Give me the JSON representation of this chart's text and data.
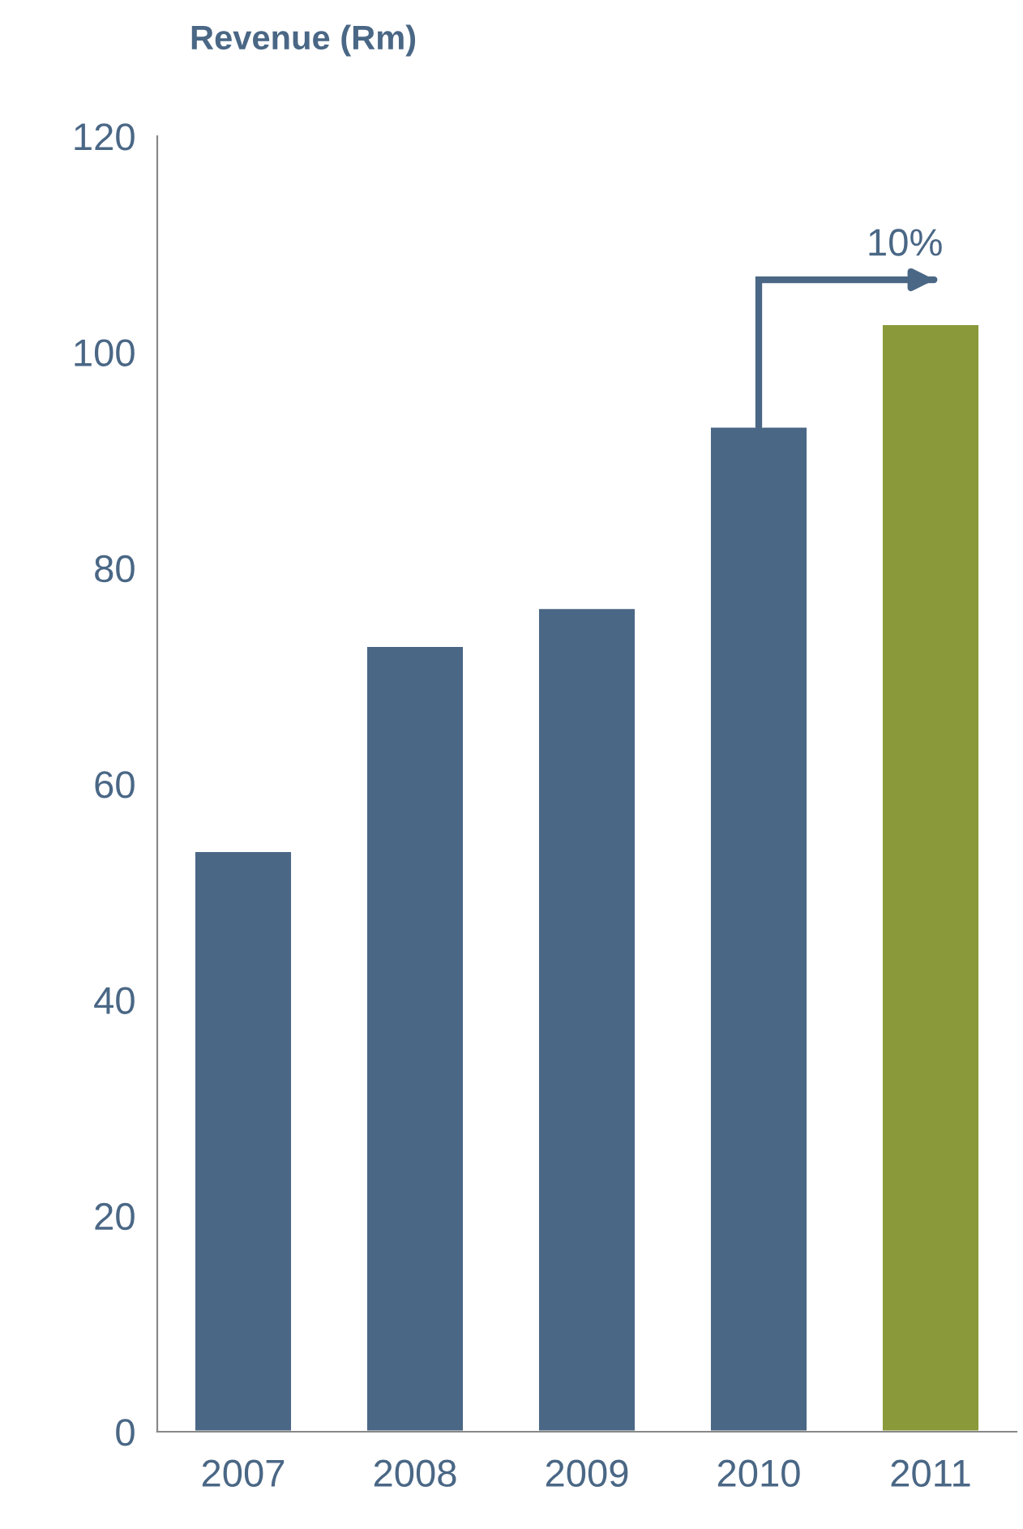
{
  "chart_data": {
    "type": "bar",
    "title": "Revenue (Rm)",
    "categories": [
      "2007",
      "2008",
      "2009",
      "2010",
      "2011"
    ],
    "values": [
      53.8,
      72.8,
      76.3,
      93.1,
      102.6
    ],
    "colors": [
      "#4a6785",
      "#4a6785",
      "#4a6785",
      "#4a6785",
      "#8a9a3a"
    ],
    "ylim": [
      0,
      120
    ],
    "yticks": [
      0,
      20,
      40,
      60,
      80,
      100,
      120
    ],
    "annotations": [
      {
        "text": "10%",
        "x": "2011",
        "y": 102.6
      }
    ],
    "grid": false
  }
}
